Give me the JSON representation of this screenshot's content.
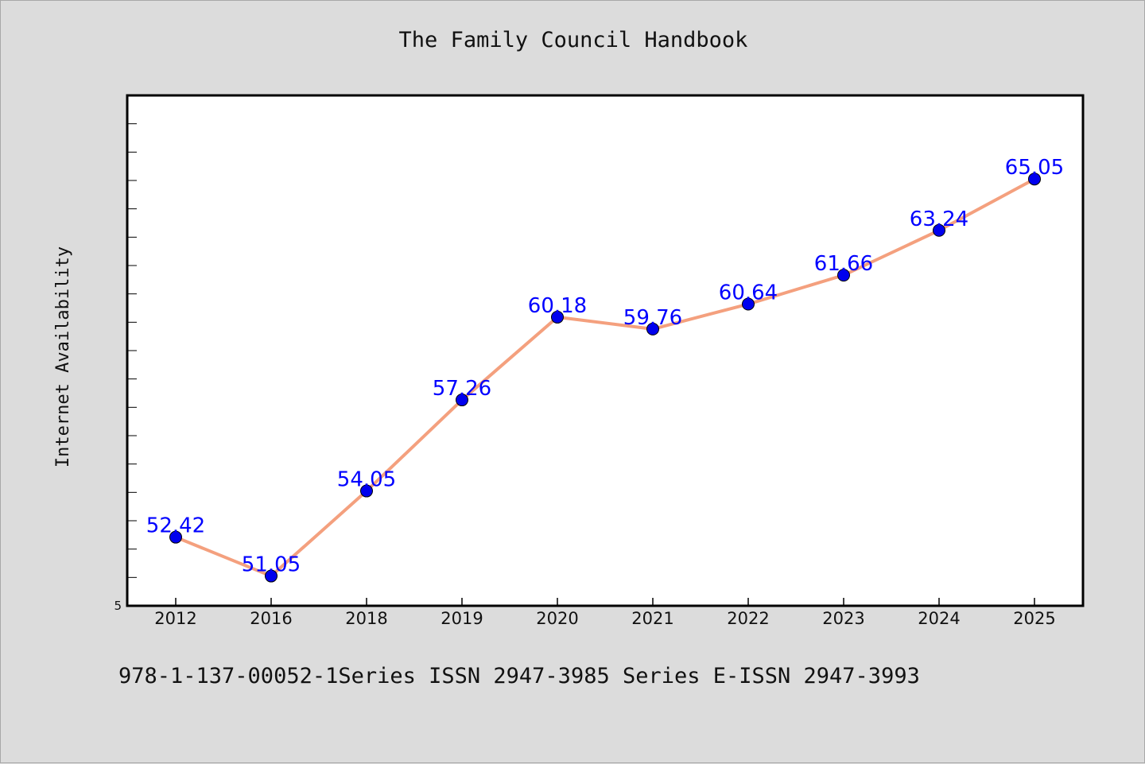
{
  "chart_data": {
    "type": "line",
    "title": "The Family Council Handbook",
    "ylabel": "Internet Availability",
    "xlabel": "",
    "categories": [
      "2012",
      "2016",
      "2018",
      "2019",
      "2020",
      "2021",
      "2022",
      "2023",
      "2024",
      "2025"
    ],
    "series": [
      {
        "values": [
          52.42,
          51.05,
          54.05,
          57.26,
          60.18,
          59.76,
          60.64,
          61.66,
          63.24,
          65.05
        ],
        "labels": [
          "52.42",
          "51.05",
          "54.05",
          "57.26",
          "60.18",
          "59.76",
          "60.64",
          "61.66",
          "63.24",
          "65.05"
        ],
        "line_color": "#f4a07e",
        "marker_color": "#0000ee",
        "label_color": "#0000ff"
      }
    ],
    "ylim": [
      50,
      68
    ],
    "y_tick_labels": [
      "5"
    ],
    "grid": false,
    "legend": "none"
  },
  "footer": {
    "text": "978-1-137-00052-1Series ISSN 2947-3985 Series E-ISSN 2947-3993"
  }
}
